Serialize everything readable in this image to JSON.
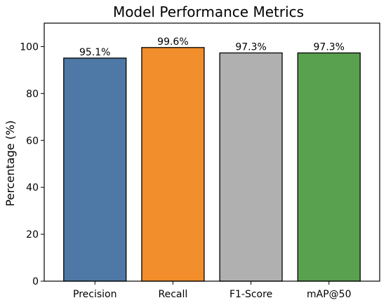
{
  "chart_data": {
    "type": "bar",
    "title": "Model Performance Metrics",
    "xlabel": "",
    "ylabel": "Percentage (%)",
    "categories": [
      "Precision",
      "Recall",
      "F1-Score",
      "mAP@50"
    ],
    "values": [
      95.1,
      99.6,
      97.3,
      97.3
    ],
    "data_labels": [
      "95.1%",
      "99.6%",
      "97.3%",
      "97.3%"
    ],
    "colors": [
      "#4e79a7",
      "#f28e2b",
      "#b0b0b0",
      "#59a14f"
    ],
    "ylim": [
      0,
      110
    ],
    "yticks": [
      0,
      20,
      40,
      60,
      80,
      100
    ],
    "grid": false,
    "legend": "none"
  }
}
